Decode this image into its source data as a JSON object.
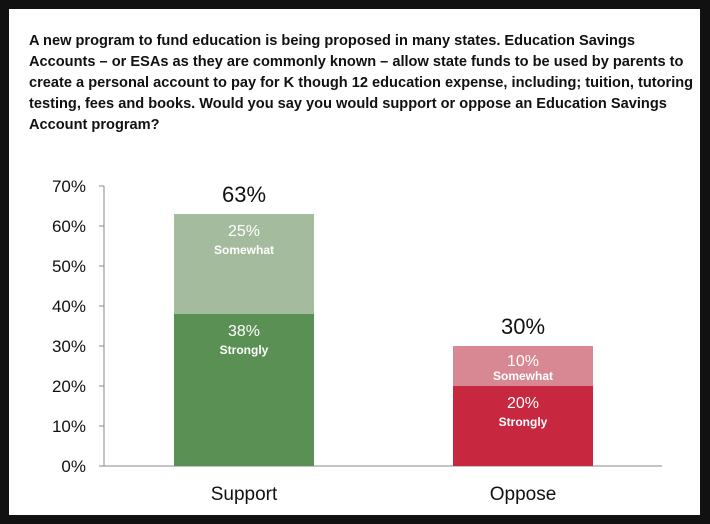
{
  "question": "A new program to fund education is being proposed in many states. Education Savings Accounts – or ESAs as they are commonly known – allow state funds to be used by parents to create a personal account to pay for K though 12 education expense, including; tuition, tutoring testing, fees and books.  Would you say you would support or oppose an Education Savings Account program?",
  "chart_data": {
    "type": "bar",
    "stacked": true,
    "categories": [
      "Support",
      "Oppose"
    ],
    "ylim": [
      0,
      70
    ],
    "yticks": [
      0,
      10,
      20,
      30,
      40,
      50,
      60,
      70
    ],
    "ytick_labels": [
      "0%",
      "10%",
      "20%",
      "30%",
      "40%",
      "50%",
      "60%",
      "70%"
    ],
    "grid": false,
    "totals": [
      {
        "value": 63,
        "label": "63%"
      },
      {
        "value": 30,
        "label": "30%"
      }
    ],
    "bars": [
      {
        "category": "Support",
        "segments": [
          {
            "value": 38,
            "value_label": "38%",
            "label": "Strongly",
            "color": "#5a9054"
          },
          {
            "value": 25,
            "value_label": "25%",
            "label": "Somewhat",
            "color": "#a4bb9d"
          }
        ]
      },
      {
        "category": "Oppose",
        "segments": [
          {
            "value": 20,
            "value_label": "20%",
            "label": "Strongly",
            "color": "#c8283f"
          },
          {
            "value": 10,
            "value_label": "10%",
            "label": "Somewhat",
            "color": "#d88892"
          }
        ]
      }
    ]
  }
}
